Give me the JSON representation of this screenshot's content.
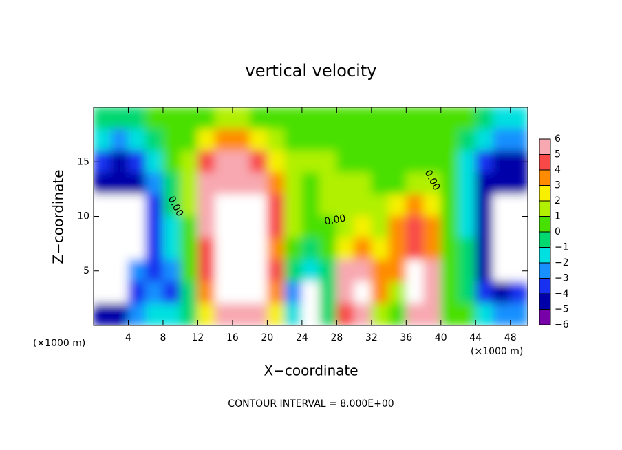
{
  "chart_data": {
    "type": "heatmap",
    "title": "vertical velocity",
    "xlabel": "X−coordinate",
    "ylabel": "Z−coordinate",
    "x_unit": "(×1000 m)",
    "y_unit": "(×1000 m)",
    "footer": "CONTOUR INTERVAL = 8.000E+00",
    "annotations": [
      "0.00",
      "0.00",
      "0.00"
    ],
    "xlim": [
      0,
      50
    ],
    "ylim": [
      0,
      20
    ],
    "xticks": [
      4,
      8,
      12,
      16,
      20,
      24,
      28,
      32,
      36,
      40,
      44,
      48
    ],
    "yticks": [
      5,
      10,
      15
    ],
    "x": [
      1,
      3,
      5,
      7,
      9,
      11,
      13,
      15,
      17,
      19,
      21,
      23,
      25,
      27,
      29,
      31,
      33,
      35,
      37,
      39,
      41,
      43,
      45,
      47,
      49
    ],
    "y": [
      19,
      17,
      15,
      13,
      11,
      9,
      7,
      5,
      3,
      1
    ],
    "z": [
      [
        -1,
        -1,
        -0.5,
        0,
        0,
        0,
        0.5,
        1,
        1,
        0.5,
        0,
        0,
        0,
        0,
        0,
        0,
        0,
        0,
        0,
        0,
        0,
        0,
        -1,
        -1.5,
        -2
      ],
      [
        -2,
        -2.5,
        -2,
        -1,
        0,
        0.5,
        2,
        3,
        3,
        2,
        1,
        0.5,
        0.5,
        0.5,
        0,
        0,
        0,
        0,
        0,
        0,
        0,
        -1,
        -2,
        -2.5,
        -3
      ],
      [
        -4,
        -4.5,
        -4,
        -2,
        0,
        1,
        4,
        5,
        5,
        4,
        2,
        1,
        1,
        1,
        0.5,
        0.5,
        0,
        0,
        0.5,
        0.5,
        0,
        -1.5,
        -4,
        -4.5,
        -4.5
      ],
      [
        -5,
        -5,
        -4.5,
        -3,
        -1,
        1,
        5,
        6,
        6,
        5,
        3,
        1,
        0.5,
        1,
        1,
        1,
        0.5,
        0.5,
        1,
        1,
        0,
        -2,
        -4.5,
        -5,
        -5
      ],
      [
        8,
        8,
        8,
        -4,
        -1,
        1,
        6,
        8,
        8,
        8,
        4,
        1,
        0.5,
        1,
        1,
        1,
        1,
        2,
        3,
        2,
        0,
        -2,
        -5,
        8,
        8
      ],
      [
        8,
        8,
        8,
        -4,
        -2,
        0,
        5,
        8,
        8,
        8,
        4,
        1,
        0,
        0,
        1,
        2,
        1,
        3,
        4,
        3,
        0,
        -2,
        -5,
        8,
        8
      ],
      [
        8,
        8,
        8,
        -4,
        -2,
        0,
        4,
        8,
        8,
        8,
        3,
        0,
        -1,
        0,
        2,
        3,
        2,
        3,
        4,
        3,
        0,
        -1,
        -5,
        8,
        8
      ],
      [
        8,
        8,
        -3,
        -4,
        -3,
        0,
        4,
        8,
        8,
        8,
        4,
        -1,
        -2,
        -1,
        5,
        6,
        3,
        3,
        8,
        5,
        0,
        -1,
        -5,
        8,
        8
      ],
      [
        8,
        8,
        -4,
        -3,
        -4,
        -1,
        3,
        8,
        8,
        8,
        3,
        -3,
        8,
        -1,
        6,
        8,
        3,
        1,
        8,
        6,
        0,
        -1,
        -4,
        -5,
        -4
      ],
      [
        -5,
        -5,
        -3,
        -2,
        -2,
        -1,
        2,
        5,
        6,
        5,
        2,
        -2,
        8,
        -1,
        4,
        5,
        1,
        0,
        6,
        5,
        0,
        0,
        -2,
        -3,
        -3
      ]
    ],
    "colorbar": {
      "levels": [
        6,
        5,
        4,
        3,
        2,
        1,
        0,
        {
          "value": -1,
          "label": "−1"
        },
        {
          "value": -2,
          "label": "−2"
        },
        {
          "value": -3,
          "label": "−3"
        },
        {
          "value": -4,
          "label": "−4"
        },
        {
          "value": -5,
          "label": "−5"
        },
        {
          "value": -6,
          "label": "−6"
        }
      ],
      "colors": [
        "#f8a8b0",
        "#f84848",
        "#ff8c00",
        "#f8f000",
        "#b0f000",
        "#48e000",
        "#00d870",
        "#00e0e0",
        "#1890ff",
        "#1830f0",
        "#0000a8",
        "#7800a8"
      ],
      "above_color": "#ffffff"
    }
  }
}
